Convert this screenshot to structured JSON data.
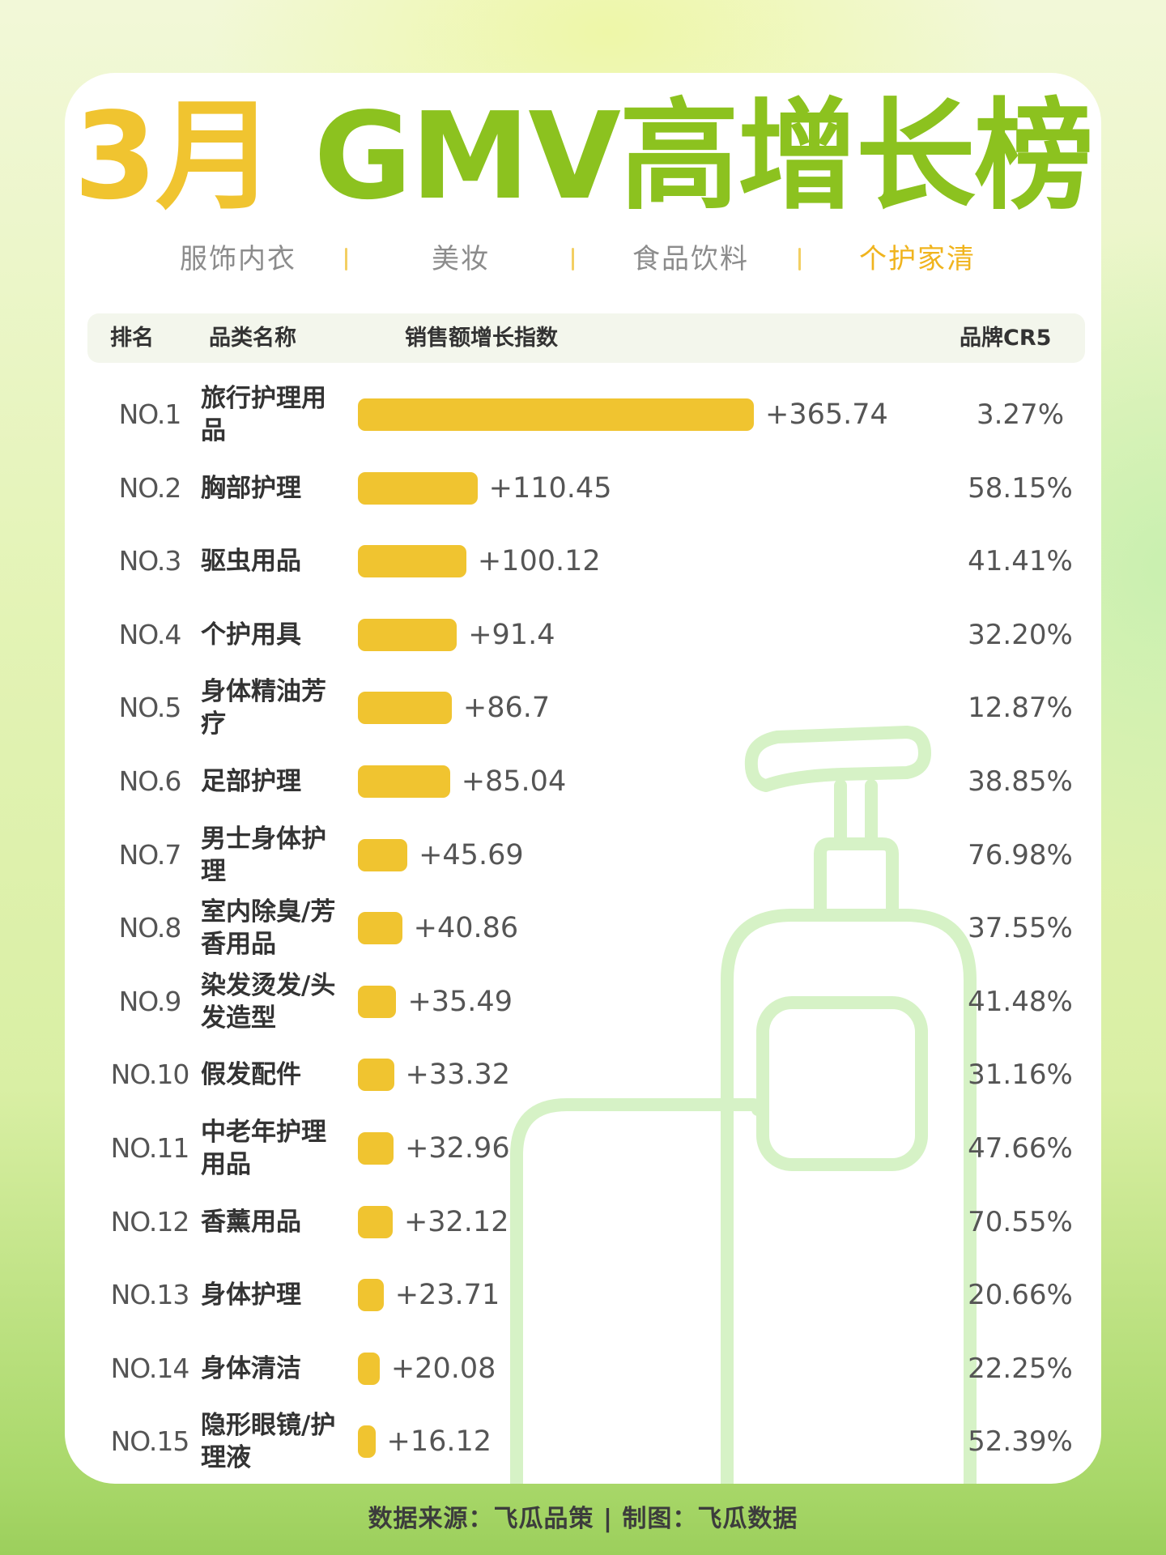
{
  "title": {
    "month": "3月",
    "main": " GMV高增长榜"
  },
  "tabs": [
    {
      "label": "服饰内衣",
      "active": false
    },
    {
      "label": "美妆",
      "active": false
    },
    {
      "label": "食品饮料",
      "active": false
    },
    {
      "label": "个护家清",
      "active": true
    }
  ],
  "table": {
    "headers": {
      "rank": "排名",
      "name": "品类名称",
      "index": "销售额增长指数",
      "cr5": "品牌CR5"
    },
    "rows": [
      {
        "rank": "NO.1",
        "name": "旅行护理用品",
        "value_label": "+365.74",
        "value": 365.74,
        "cr5": "3.27%"
      },
      {
        "rank": "NO.2",
        "name": "胸部护理",
        "value_label": "+110.45",
        "value": 110.45,
        "cr5": "58.15%"
      },
      {
        "rank": "NO.3",
        "name": "驱虫用品",
        "value_label": "+100.12",
        "value": 100.12,
        "cr5": "41.41%"
      },
      {
        "rank": "NO.4",
        "name": "个护用具",
        "value_label": "+91.4",
        "value": 91.4,
        "cr5": "32.20%"
      },
      {
        "rank": "NO.5",
        "name": "身体精油芳疗",
        "value_label": "+86.7",
        "value": 86.7,
        "cr5": "12.87%"
      },
      {
        "rank": "NO.6",
        "name": "足部护理",
        "value_label": "+85.04",
        "value": 85.04,
        "cr5": "38.85%"
      },
      {
        "rank": "NO.7",
        "name": "男士身体护理",
        "value_label": "+45.69",
        "value": 45.69,
        "cr5": "76.98%"
      },
      {
        "rank": "NO.8",
        "name": "室内除臭/芳香用品",
        "value_label": "+40.86",
        "value": 40.86,
        "cr5": "37.55%"
      },
      {
        "rank": "NO.9",
        "name": "染发烫发/头发造型",
        "value_label": "+35.49",
        "value": 35.49,
        "cr5": "41.48%"
      },
      {
        "rank": "NO.10",
        "name": "假发配件",
        "value_label": "+33.32",
        "value": 33.32,
        "cr5": "31.16%"
      },
      {
        "rank": "NO.11",
        "name": "中老年护理用品",
        "value_label": "+32.96",
        "value": 32.96,
        "cr5": "47.66%"
      },
      {
        "rank": "NO.12",
        "name": "香薰用品",
        "value_label": "+32.12",
        "value": 32.12,
        "cr5": "70.55%"
      },
      {
        "rank": "NO.13",
        "name": "身体护理",
        "value_label": "+23.71",
        "value": 23.71,
        "cr5": "20.66%"
      },
      {
        "rank": "NO.14",
        "name": "身体清洁",
        "value_label": "+20.08",
        "value": 20.08,
        "cr5": "22.25%"
      },
      {
        "rank": "NO.15",
        "name": "隐形眼镜/护理液",
        "value_label": "+16.12",
        "value": 16.12,
        "cr5": "52.39%"
      }
    ]
  },
  "footer": "数据来源：飞瓜品策 | 制图：飞瓜数据",
  "colors": {
    "bar": "#f0c430",
    "title_month": "#f0c430",
    "title_main": "#8cc21f",
    "tab_active": "#f0b41e",
    "tab_inactive": "#8c8c8c",
    "decor": "#d6f2c6"
  },
  "chart_data": {
    "type": "bar",
    "orientation": "horizontal",
    "title": "3月 GMV高增长榜",
    "subtitle": "个护家清",
    "xlabel": "销售额增长指数",
    "ylabel": "品类名称",
    "categories": [
      "旅行护理用品",
      "胸部护理",
      "驱虫用品",
      "个护用具",
      "身体精油芳疗",
      "足部护理",
      "男士身体护理",
      "室内除臭/芳香用品",
      "染发烫发/头发造型",
      "假发配件",
      "中老年护理用品",
      "香薰用品",
      "身体护理",
      "身体清洁",
      "隐形眼镜/护理液"
    ],
    "series": [
      {
        "name": "销售额增长指数",
        "values": [
          365.74,
          110.45,
          100.12,
          91.4,
          86.7,
          85.04,
          45.69,
          40.86,
          35.49,
          33.32,
          32.96,
          32.12,
          23.71,
          20.08,
          16.12
        ]
      },
      {
        "name": "品牌CR5 (%)",
        "values": [
          3.27,
          58.15,
          41.41,
          32.2,
          12.87,
          38.85,
          76.98,
          37.55,
          41.48,
          31.16,
          47.66,
          70.55,
          20.66,
          22.25,
          52.39
        ]
      }
    ],
    "grid": false,
    "legend": "none"
  }
}
